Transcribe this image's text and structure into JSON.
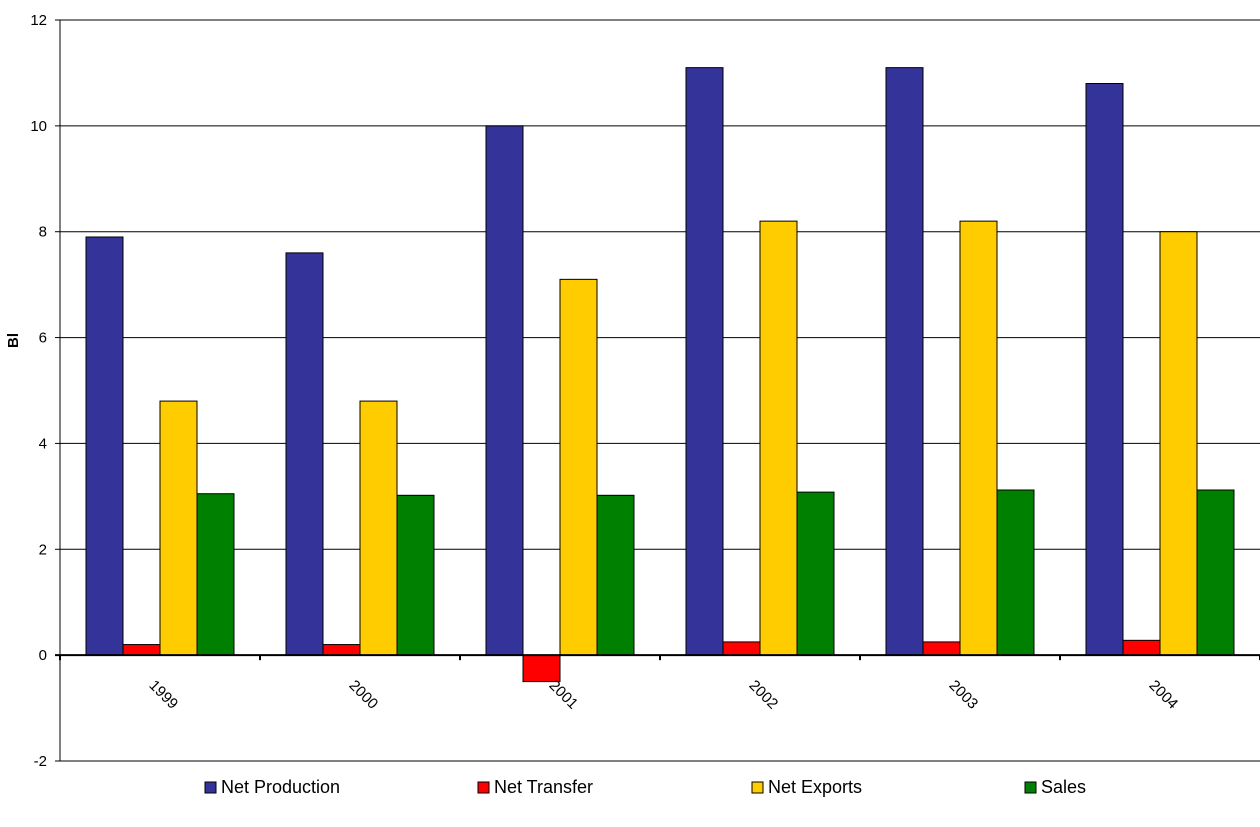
{
  "chart_data": {
    "type": "bar",
    "title": "",
    "xlabel": "",
    "ylabel": "Bl",
    "ylim": [
      -2,
      12
    ],
    "yticks": [
      -2,
      0,
      2,
      4,
      6,
      8,
      10,
      12
    ],
    "grid": true,
    "legend_position": "bottom",
    "categories": [
      "1999",
      "2000",
      "2001",
      "2002",
      "2003",
      "2004"
    ],
    "series": [
      {
        "name": "Net Production",
        "color": "#333399",
        "values": [
          7.9,
          7.6,
          10.0,
          11.1,
          11.1,
          10.8
        ]
      },
      {
        "name": "Net Transfer",
        "color": "#ff0000",
        "values": [
          0.2,
          0.2,
          -0.5,
          0.25,
          0.25,
          0.28
        ]
      },
      {
        "name": "Net Exports",
        "color": "#ffcc00",
        "values": [
          4.8,
          4.8,
          7.1,
          8.2,
          8.2,
          8.0
        ]
      },
      {
        "name": "Sales",
        "color": "#008000",
        "values": [
          3.05,
          3.02,
          3.02,
          3.08,
          3.12,
          3.12
        ]
      }
    ]
  }
}
